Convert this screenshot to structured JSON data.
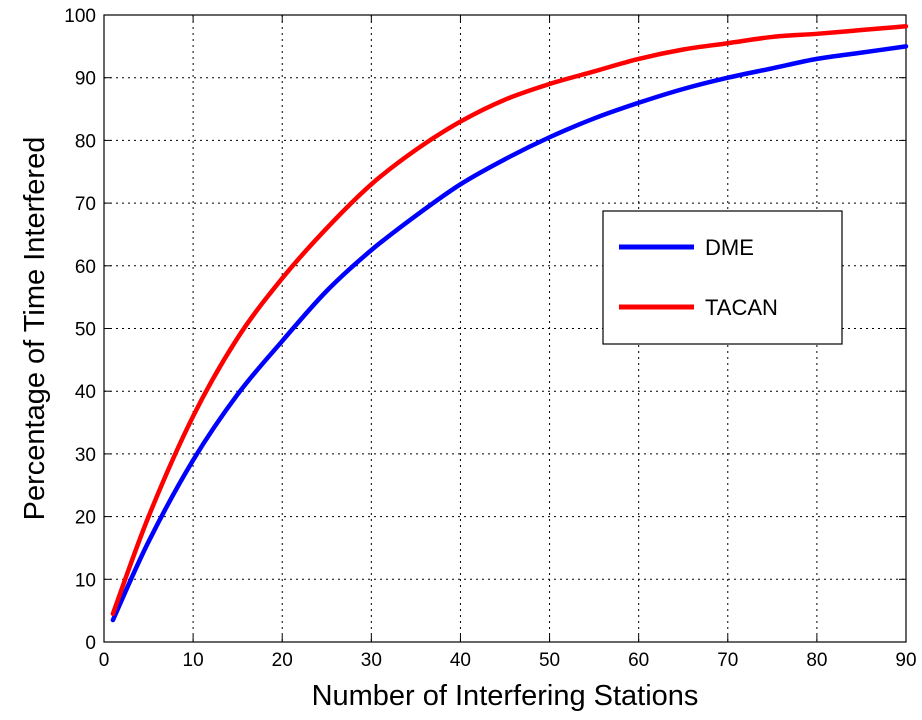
{
  "chart_data": {
    "type": "line",
    "title": "",
    "xlabel": "Number of Interfering Stations",
    "ylabel": "Percentage of Time Interfered",
    "xlim": [
      0,
      90
    ],
    "ylim": [
      0,
      100
    ],
    "xticks": [
      0,
      10,
      20,
      30,
      40,
      50,
      60,
      70,
      80,
      90
    ],
    "yticks": [
      0,
      10,
      20,
      30,
      40,
      50,
      60,
      70,
      80,
      90,
      100
    ],
    "grid": true,
    "legend_position": "right-middle",
    "series": [
      {
        "name": "DME",
        "color": "#0000ff",
        "x": [
          1,
          5,
          10,
          15,
          20,
          25,
          30,
          35,
          40,
          45,
          50,
          55,
          60,
          65,
          70,
          75,
          80,
          85,
          90
        ],
        "y": [
          3.5,
          16,
          29,
          39.5,
          48,
          56,
          62.5,
          68,
          73,
          77,
          80.5,
          83.5,
          86,
          88.2,
          90,
          91.5,
          93,
          94,
          95
        ]
      },
      {
        "name": "TACAN",
        "color": "#ff0000",
        "x": [
          1,
          5,
          10,
          15,
          20,
          25,
          30,
          35,
          40,
          45,
          50,
          55,
          60,
          65,
          70,
          75,
          80,
          85,
          90
        ],
        "y": [
          4.5,
          20,
          36,
          48.5,
          58,
          66,
          73,
          78.5,
          83,
          86.5,
          89,
          91,
          93,
          94.5,
          95.5,
          96.5,
          97,
          97.6,
          98.2
        ]
      }
    ]
  }
}
